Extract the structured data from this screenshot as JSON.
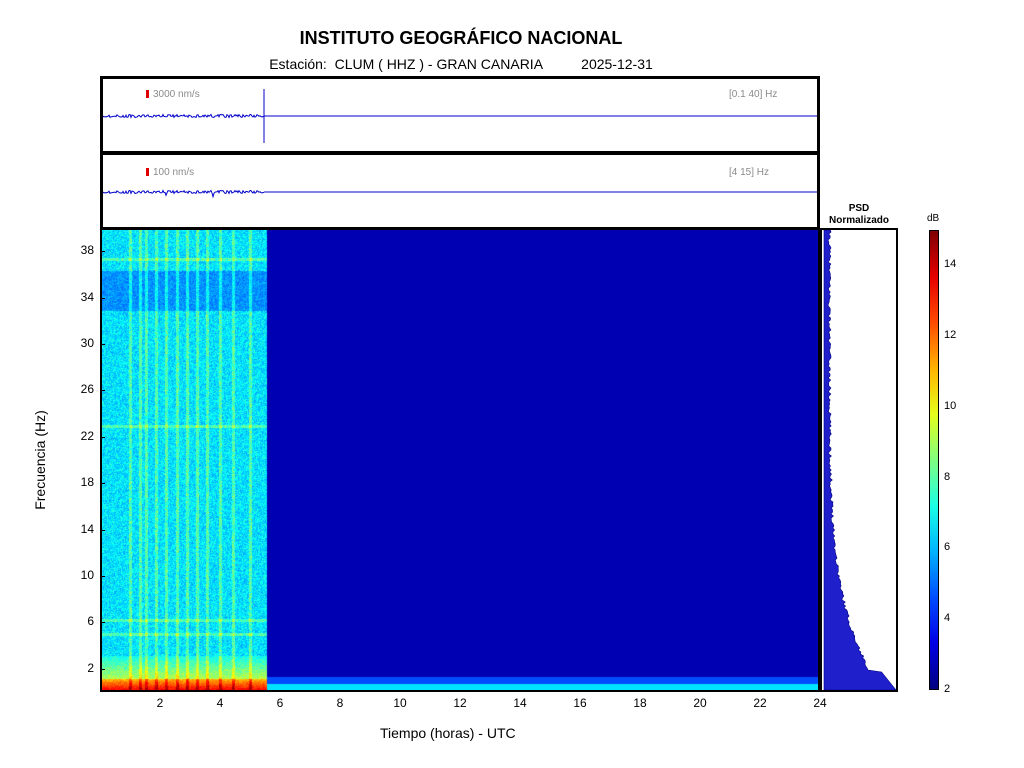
{
  "header": {
    "title": "INSTITUTO GEOGRÁFICO NACIONAL",
    "subtitle": "Estación:  CLUM ( HHZ ) - GRAN CANARIA          2025-12-31"
  },
  "trace_panels": [
    {
      "scale_label": "3000 nm/s",
      "band_label": "[0.1 40] Hz"
    },
    {
      "scale_label": "100 nm/s",
      "band_label": "[4 15] Hz"
    }
  ],
  "psd": {
    "title_line1": "PSD",
    "title_line2": "Normalizado"
  },
  "colorbar": {
    "unit": "dB",
    "min": 2,
    "max": 15,
    "ticks": [
      "2",
      "4",
      "6",
      "8",
      "10",
      "12",
      "14"
    ]
  },
  "colors": {
    "trace": "#0000cc",
    "scale_bar": "#e00000",
    "background_spectrogram": "#00008b"
  },
  "chart_data": {
    "type": "heatmap",
    "title": "INSTITUTO GEOGRÁFICO NACIONAL",
    "xlabel": "Tiempo (horas) - UTC",
    "ylabel": "Frecuencia  (Hz)",
    "xlim": [
      0,
      24
    ],
    "ylim": [
      0,
      40
    ],
    "x_ticks": [
      "2",
      "4",
      "6",
      "8",
      "10",
      "12",
      "14",
      "16",
      "18",
      "20",
      "22",
      "24"
    ],
    "y_ticks": [
      "2",
      "6",
      "10",
      "14",
      "18",
      "22",
      "26",
      "30",
      "34",
      "38"
    ],
    "data_end_hour": 5.5,
    "colormap": "jet",
    "color_range_db": [
      2,
      15
    ]
  }
}
